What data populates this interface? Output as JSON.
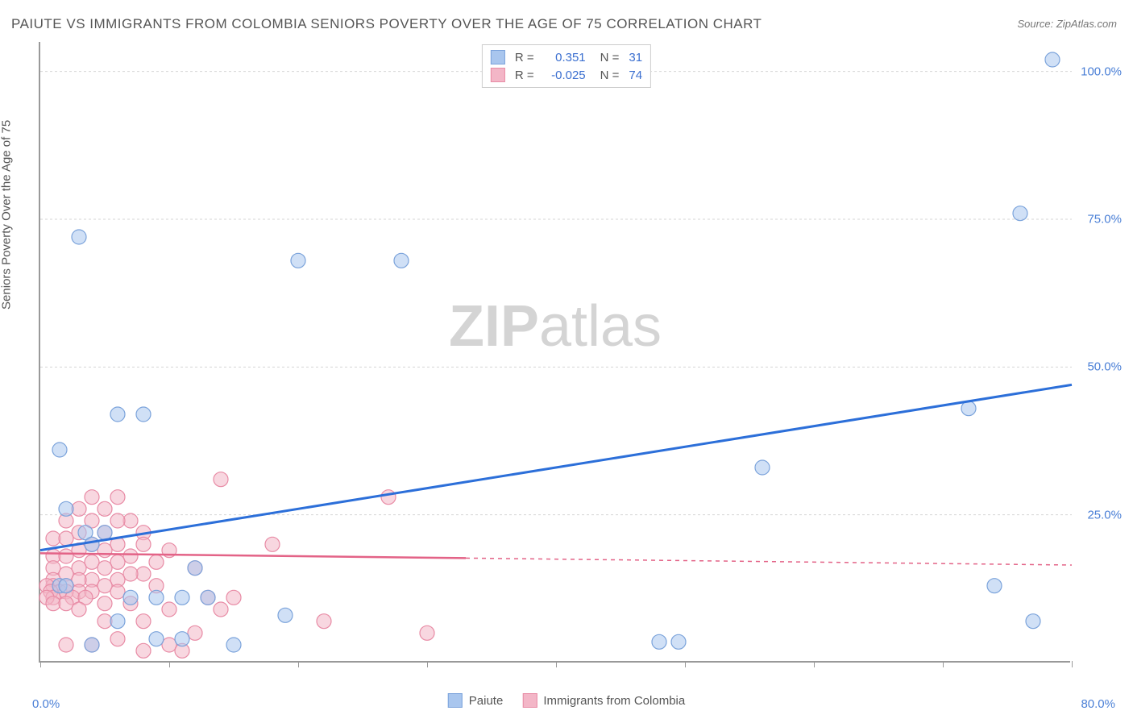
{
  "title": "PAIUTE VS IMMIGRANTS FROM COLOMBIA SENIORS POVERTY OVER THE AGE OF 75 CORRELATION CHART",
  "source": "Source: ZipAtlas.com",
  "y_axis_label": "Seniors Poverty Over the Age of 75",
  "watermark_part1": "ZIP",
  "watermark_part2": "atlas",
  "chart": {
    "type": "scatter",
    "xlim": [
      0,
      80
    ],
    "ylim": [
      0,
      105
    ],
    "x_ticks": [
      0,
      10,
      20,
      30,
      40,
      50,
      60,
      70,
      80
    ],
    "y_ticks": [
      25,
      50,
      75,
      100
    ],
    "y_tick_labels": [
      "25.0%",
      "50.0%",
      "75.0%",
      "100.0%"
    ],
    "x_min_label": "0.0%",
    "x_max_label": "80.0%",
    "background_color": "#ffffff",
    "grid_color": "#d5d5d5",
    "axis_color": "#999999",
    "label_color": "#4a7fd6",
    "series": [
      {
        "name": "Paiute",
        "fill": "#a9c6ee",
        "stroke": "#7ba3db",
        "fill_opacity": 0.55,
        "marker_radius": 9,
        "line_color": "#2c6fd9",
        "line_width": 3,
        "trend_start": {
          "x": 0,
          "y": 19
        },
        "trend_end": {
          "x": 80,
          "y": 47
        },
        "trend_solid_until_x": 80,
        "R": "0.351",
        "N": "31",
        "points": [
          {
            "x": 78.5,
            "y": 102
          },
          {
            "x": 76,
            "y": 76
          },
          {
            "x": 3,
            "y": 72
          },
          {
            "x": 20,
            "y": 68
          },
          {
            "x": 28,
            "y": 68
          },
          {
            "x": 72,
            "y": 43
          },
          {
            "x": 6,
            "y": 42
          },
          {
            "x": 8,
            "y": 42
          },
          {
            "x": 1.5,
            "y": 36
          },
          {
            "x": 56,
            "y": 33
          },
          {
            "x": 2,
            "y": 26
          },
          {
            "x": 3.5,
            "y": 22
          },
          {
            "x": 5,
            "y": 22
          },
          {
            "x": 4,
            "y": 20
          },
          {
            "x": 12,
            "y": 16
          },
          {
            "x": 74,
            "y": 13
          },
          {
            "x": 1.5,
            "y": 13
          },
          {
            "x": 2,
            "y": 13
          },
          {
            "x": 7,
            "y": 11
          },
          {
            "x": 9,
            "y": 11
          },
          {
            "x": 11,
            "y": 11
          },
          {
            "x": 13,
            "y": 11
          },
          {
            "x": 19,
            "y": 8
          },
          {
            "x": 6,
            "y": 7
          },
          {
            "x": 77,
            "y": 7
          },
          {
            "x": 9,
            "y": 4
          },
          {
            "x": 11,
            "y": 4
          },
          {
            "x": 48,
            "y": 3.5
          },
          {
            "x": 49.5,
            "y": 3.5
          },
          {
            "x": 4,
            "y": 3
          },
          {
            "x": 15,
            "y": 3
          }
        ]
      },
      {
        "name": "Immigrants from Colombia",
        "fill": "#f3b6c7",
        "stroke": "#e88ba5",
        "fill_opacity": 0.55,
        "marker_radius": 9,
        "line_color": "#e36387",
        "line_width": 2.5,
        "trend_start": {
          "x": 0,
          "y": 18.5
        },
        "trend_end": {
          "x": 80,
          "y": 16.5
        },
        "trend_solid_until_x": 33,
        "R": "-0.025",
        "N": "74",
        "points": [
          {
            "x": 14,
            "y": 31
          },
          {
            "x": 27,
            "y": 28
          },
          {
            "x": 4,
            "y": 28
          },
          {
            "x": 6,
            "y": 28
          },
          {
            "x": 3,
            "y": 26
          },
          {
            "x": 5,
            "y": 26
          },
          {
            "x": 7,
            "y": 24
          },
          {
            "x": 2,
            "y": 24
          },
          {
            "x": 4,
            "y": 24
          },
          {
            "x": 6,
            "y": 24
          },
          {
            "x": 5,
            "y": 22
          },
          {
            "x": 8,
            "y": 22
          },
          {
            "x": 3,
            "y": 22
          },
          {
            "x": 1,
            "y": 21
          },
          {
            "x": 2,
            "y": 21
          },
          {
            "x": 18,
            "y": 20
          },
          {
            "x": 6,
            "y": 20
          },
          {
            "x": 4,
            "y": 20
          },
          {
            "x": 8,
            "y": 20
          },
          {
            "x": 10,
            "y": 19
          },
          {
            "x": 3,
            "y": 19
          },
          {
            "x": 5,
            "y": 19
          },
          {
            "x": 1,
            "y": 18
          },
          {
            "x": 7,
            "y": 18
          },
          {
            "x": 2,
            "y": 18
          },
          {
            "x": 4,
            "y": 17
          },
          {
            "x": 9,
            "y": 17
          },
          {
            "x": 6,
            "y": 17
          },
          {
            "x": 12,
            "y": 16
          },
          {
            "x": 3,
            "y": 16
          },
          {
            "x": 1,
            "y": 16
          },
          {
            "x": 5,
            "y": 16
          },
          {
            "x": 8,
            "y": 15
          },
          {
            "x": 2,
            "y": 15
          },
          {
            "x": 7,
            "y": 15
          },
          {
            "x": 1,
            "y": 14
          },
          {
            "x": 4,
            "y": 14
          },
          {
            "x": 3,
            "y": 14
          },
          {
            "x": 6,
            "y": 14
          },
          {
            "x": 2,
            "y": 13
          },
          {
            "x": 5,
            "y": 13
          },
          {
            "x": 1,
            "y": 13
          },
          {
            "x": 9,
            "y": 13
          },
          {
            "x": 0.5,
            "y": 13
          },
          {
            "x": 3,
            "y": 12
          },
          {
            "x": 1.5,
            "y": 12
          },
          {
            "x": 4,
            "y": 12
          },
          {
            "x": 2,
            "y": 12
          },
          {
            "x": 0.8,
            "y": 12
          },
          {
            "x": 6,
            "y": 12
          },
          {
            "x": 1,
            "y": 11
          },
          {
            "x": 2.5,
            "y": 11
          },
          {
            "x": 3.5,
            "y": 11
          },
          {
            "x": 0.5,
            "y": 11
          },
          {
            "x": 13,
            "y": 11
          },
          {
            "x": 15,
            "y": 11
          },
          {
            "x": 5,
            "y": 10
          },
          {
            "x": 1,
            "y": 10
          },
          {
            "x": 2,
            "y": 10
          },
          {
            "x": 7,
            "y": 10
          },
          {
            "x": 10,
            "y": 9
          },
          {
            "x": 3,
            "y": 9
          },
          {
            "x": 14,
            "y": 9
          },
          {
            "x": 22,
            "y": 7
          },
          {
            "x": 5,
            "y": 7
          },
          {
            "x": 8,
            "y": 7
          },
          {
            "x": 30,
            "y": 5
          },
          {
            "x": 12,
            "y": 5
          },
          {
            "x": 6,
            "y": 4
          },
          {
            "x": 10,
            "y": 3
          },
          {
            "x": 4,
            "y": 3
          },
          {
            "x": 2,
            "y": 3
          },
          {
            "x": 8,
            "y": 2
          },
          {
            "x": 11,
            "y": 2
          }
        ]
      }
    ]
  },
  "legend_top": {
    "r_label": "R =",
    "n_label": "N ="
  },
  "legend_bottom": {
    "series1": "Paiute",
    "series2": "Immigrants from Colombia"
  }
}
